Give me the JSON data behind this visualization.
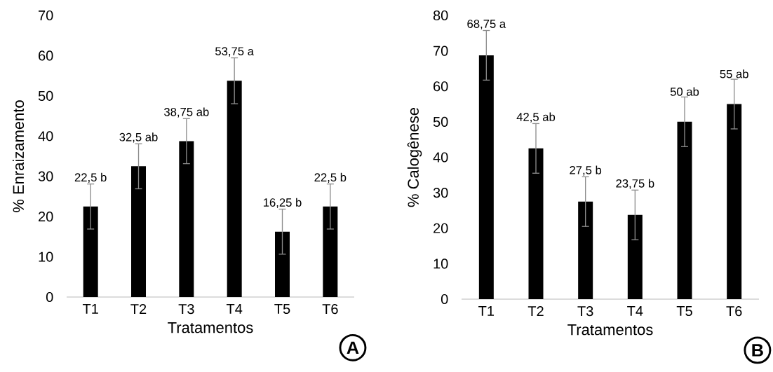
{
  "chart_data": [
    {
      "type": "bar",
      "xlabel": "Tratamentos",
      "ylabel": "% Enraizamento",
      "categories": [
        "T1",
        "T2",
        "T3",
        "T4",
        "T5",
        "T6"
      ],
      "values": [
        22.5,
        32.5,
        38.75,
        53.75,
        16.25,
        22.5
      ],
      "errors": [
        5.6,
        5.6,
        5.6,
        5.7,
        5.6,
        5.6
      ],
      "value_labels": [
        "22,5 b",
        "32,5 ab",
        "38,75 ab",
        "53,75 a",
        "16,25 b",
        "22,5 b"
      ],
      "color": "#000000",
      "ylim": [
        0,
        70
      ],
      "yticks": [
        0,
        10,
        20,
        30,
        40,
        50,
        60,
        70
      ],
      "annotations": [
        "A"
      ]
    },
    {
      "type": "bar",
      "xlabel": "Tratamentos",
      "ylabel": "% Calogênese",
      "categories": [
        "T1",
        "T2",
        "T3",
        "T4",
        "T5",
        "T6"
      ],
      "values": [
        68.75,
        42.5,
        27.5,
        23.75,
        50,
        55
      ],
      "errors": [
        7,
        7,
        7,
        7,
        7,
        7
      ],
      "value_labels": [
        "68,75 a",
        "42,5 ab",
        "27,5 b",
        "23,75 b",
        "50 ab",
        "55 ab"
      ],
      "color": "#000000",
      "ylim": [
        0,
        80
      ],
      "yticks": [
        0,
        10,
        20,
        30,
        40,
        50,
        60,
        70,
        80
      ],
      "annotations": [
        "B"
      ]
    }
  ]
}
